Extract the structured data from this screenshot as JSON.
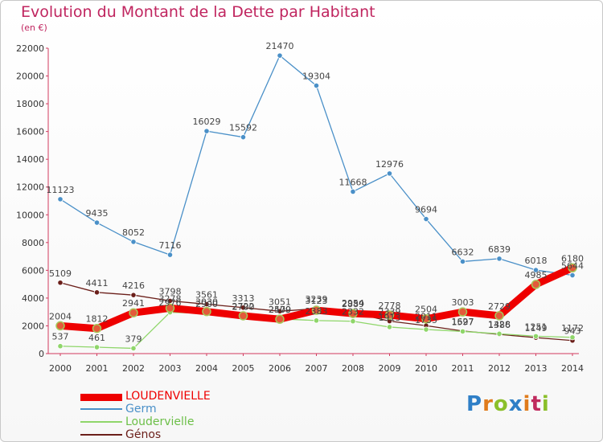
{
  "chart_data": {
    "type": "line",
    "title": "Evolution du Montant de la Dette par Habitant",
    "subtitle": "(en €)",
    "x": [
      "2000",
      "2001",
      "2002",
      "2003",
      "2004",
      "2005",
      "2006",
      "2007",
      "2008",
      "2009",
      "2010",
      "2011",
      "2012",
      "2013",
      "2014"
    ],
    "ylim": [
      0,
      22000
    ],
    "yticks": [
      0,
      2000,
      4000,
      6000,
      8000,
      10000,
      12000,
      14000,
      16000,
      18000,
      20000,
      22000
    ],
    "grid": false,
    "legend": "bottom-left",
    "series": [
      {
        "name": "Germ",
        "color": "#4a90c8",
        "values": [
          11123,
          9435,
          8052,
          7116,
          16029,
          15592,
          21470,
          19304,
          11668,
          12976,
          9694,
          6632,
          6839,
          6018,
          5644
        ]
      },
      {
        "name": "Génos",
        "color": "#6b1f1a",
        "values": [
          5109,
          4411,
          4216,
          3798,
          3561,
          3313,
          3051,
          3239,
          2954,
          2339,
          2011,
          1627,
          1386,
          1149,
          943
        ]
      },
      {
        "name": "Loudervielle",
        "color": "#8fd66a",
        "values": [
          537,
          461,
          379,
          2976,
          2900,
          2700,
          2500,
          2383,
          2332,
          1913,
          1735,
          1597,
          1428,
          1251,
          1172
        ]
      },
      {
        "name": "LOUDENVIELLE",
        "color": "#ee0000",
        "values": [
          2004,
          1812,
          2941,
          3278,
          3030,
          2722,
          2479,
          3123,
          2889,
          2778,
          2504,
          3003,
          2729,
          4985,
          6180
        ]
      }
    ],
    "data_labels": [
      {
        "series": "Germ",
        "values": [
          "11123",
          "9435",
          "8052",
          "7116",
          "16029",
          "15592",
          "21470",
          "19304",
          "11668",
          "12976",
          "9694",
          "6632",
          "6839",
          "6018",
          "5644"
        ]
      },
      {
        "series": "Génos",
        "values": [
          "5109",
          "4411",
          "4216",
          "3798",
          "3561",
          "3313",
          "3051",
          "3239",
          "2954",
          "2339",
          "2011",
          "1627",
          "1386",
          "1149",
          "943"
        ]
      },
      {
        "series": "Loudervielle",
        "values": [
          "537",
          "461",
          "379",
          "2976",
          "2900",
          "2700",
          "2500",
          "2383",
          "2332",
          "1913",
          "1735",
          "1597",
          "1428",
          "1251",
          "1172"
        ]
      },
      {
        "series": "LOUDENVIELLE",
        "values": [
          "2004",
          "1812",
          "2941",
          "3278",
          "3030",
          "2722",
          "2479",
          "3123",
          "2889",
          "2778",
          "2504",
          "3003",
          "2729",
          "4985",
          "6180"
        ]
      }
    ]
  },
  "legend": {
    "items": [
      {
        "label": "LOUDENVIELLE",
        "color": "#ee0000"
      },
      {
        "label": "Germ",
        "color": "#4a90c8"
      },
      {
        "label": "Loudervielle",
        "color": "#8fd66a"
      },
      {
        "label": "Génos",
        "color": "#6b1f1a"
      }
    ]
  },
  "logo": {
    "letters": [
      "P",
      "r",
      "o",
      "x",
      "i",
      "t",
      "i"
    ]
  }
}
